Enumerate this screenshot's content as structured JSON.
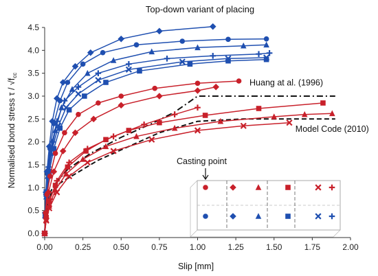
{
  "chart_data": {
    "type": "line",
    "title": "Top-down variant of placing",
    "xlabel": "Slip [mm]",
    "ylabel_main": "Normalised bond stress τ / √f",
    "ylabel_sub": "cc",
    "xlim": [
      0,
      2.0
    ],
    "ylim": [
      0,
      4.5
    ],
    "xticks": [
      "0.00",
      "0.25",
      "0.50",
      "0.75",
      "1.00",
      "1.25",
      "1.50",
      "1.75",
      "2.00"
    ],
    "yticks": [
      "0.0",
      "0.5",
      "1.0",
      "1.5",
      "2.0",
      "2.5",
      "3.0",
      "3.5",
      "4.0",
      "4.5"
    ],
    "grid": false,
    "colors": {
      "blue": "#1f4fb0",
      "red": "#c8202a",
      "black": "#111111"
    },
    "series": [
      {
        "color": "blue",
        "marker": "diamond",
        "points": [
          [
            0,
            0
          ],
          [
            0.003,
            0.45
          ],
          [
            0.008,
            0.9
          ],
          [
            0.015,
            1.35
          ],
          [
            0.03,
            1.9
          ],
          [
            0.05,
            2.45
          ],
          [
            0.08,
            2.95
          ],
          [
            0.12,
            3.3
          ],
          [
            0.2,
            3.65
          ],
          [
            0.3,
            3.95
          ],
          [
            0.5,
            4.25
          ],
          [
            0.75,
            4.42
          ],
          [
            1.1,
            4.52
          ]
        ]
      },
      {
        "color": "blue",
        "marker": "circle",
        "points": [
          [
            0,
            0
          ],
          [
            0.003,
            0.4
          ],
          [
            0.008,
            0.85
          ],
          [
            0.018,
            1.3
          ],
          [
            0.035,
            1.85
          ],
          [
            0.06,
            2.4
          ],
          [
            0.1,
            2.9
          ],
          [
            0.15,
            3.3
          ],
          [
            0.25,
            3.7
          ],
          [
            0.38,
            3.95
          ],
          [
            0.6,
            4.12
          ],
          [
            0.9,
            4.2
          ],
          [
            1.2,
            4.24
          ],
          [
            1.45,
            4.25
          ]
        ]
      },
      {
        "color": "blue",
        "marker": "triangle",
        "points": [
          [
            0,
            0
          ],
          [
            0.003,
            0.38
          ],
          [
            0.01,
            0.8
          ],
          [
            0.02,
            1.25
          ],
          [
            0.04,
            1.75
          ],
          [
            0.07,
            2.25
          ],
          [
            0.11,
            2.75
          ],
          [
            0.18,
            3.15
          ],
          [
            0.28,
            3.5
          ],
          [
            0.45,
            3.78
          ],
          [
            0.7,
            3.97
          ],
          [
            1.0,
            4.06
          ],
          [
            1.3,
            4.1
          ],
          [
            1.45,
            4.12
          ]
        ]
      },
      {
        "color": "blue",
        "marker": "plus",
        "points": [
          [
            0,
            0
          ],
          [
            0.005,
            0.45
          ],
          [
            0.012,
            0.95
          ],
          [
            0.025,
            1.45
          ],
          [
            0.05,
            2.0
          ],
          [
            0.08,
            2.45
          ],
          [
            0.13,
            2.9
          ],
          [
            0.22,
            3.2
          ],
          [
            0.35,
            3.5
          ],
          [
            0.55,
            3.7
          ],
          [
            0.8,
            3.82
          ],
          [
            1.1,
            3.88
          ],
          [
            1.4,
            3.92
          ],
          [
            1.47,
            3.94
          ]
        ]
      },
      {
        "color": "blue",
        "marker": "x",
        "points": [
          [
            0,
            0
          ],
          [
            0.004,
            0.4
          ],
          [
            0.012,
            0.85
          ],
          [
            0.025,
            1.35
          ],
          [
            0.05,
            1.85
          ],
          [
            0.09,
            2.35
          ],
          [
            0.14,
            2.75
          ],
          [
            0.22,
            3.05
          ],
          [
            0.35,
            3.35
          ],
          [
            0.55,
            3.58
          ],
          [
            0.9,
            3.75
          ],
          [
            1.2,
            3.82
          ],
          [
            1.45,
            3.84
          ]
        ]
      },
      {
        "color": "blue",
        "marker": "square",
        "points": [
          [
            0,
            0
          ],
          [
            0.005,
            0.4
          ],
          [
            0.015,
            0.85
          ],
          [
            0.03,
            1.35
          ],
          [
            0.06,
            1.85
          ],
          [
            0.1,
            2.3
          ],
          [
            0.16,
            2.7
          ],
          [
            0.26,
            3.0
          ],
          [
            0.4,
            3.3
          ],
          [
            0.62,
            3.55
          ],
          [
            0.95,
            3.7
          ],
          [
            1.2,
            3.77
          ],
          [
            1.45,
            3.8
          ]
        ]
      },
      {
        "color": "red",
        "marker": "circle",
        "points": [
          [
            0,
            0
          ],
          [
            0.005,
            0.45
          ],
          [
            0.015,
            0.85
          ],
          [
            0.035,
            1.25
          ],
          [
            0.07,
            1.75
          ],
          [
            0.13,
            2.2
          ],
          [
            0.22,
            2.6
          ],
          [
            0.35,
            2.85
          ],
          [
            0.5,
            3.0
          ],
          [
            0.72,
            3.17
          ],
          [
            1.0,
            3.28
          ],
          [
            1.27,
            3.33
          ]
        ]
      },
      {
        "color": "red",
        "marker": "diamond",
        "points": [
          [
            0,
            0
          ],
          [
            0.008,
            0.45
          ],
          [
            0.025,
            0.9
          ],
          [
            0.06,
            1.35
          ],
          [
            0.12,
            1.8
          ],
          [
            0.2,
            2.2
          ],
          [
            0.32,
            2.5
          ],
          [
            0.5,
            2.8
          ],
          [
            0.75,
            3.0
          ],
          [
            1.0,
            3.12
          ],
          [
            1.12,
            3.2
          ]
        ]
      },
      {
        "color": "red",
        "marker": "square",
        "points": [
          [
            0,
            0
          ],
          [
            0.01,
            0.35
          ],
          [
            0.03,
            0.7
          ],
          [
            0.07,
            1.05
          ],
          [
            0.15,
            1.45
          ],
          [
            0.27,
            1.8
          ],
          [
            0.4,
            2.05
          ],
          [
            0.55,
            2.25
          ],
          [
            0.75,
            2.42
          ],
          [
            1.05,
            2.58
          ],
          [
            1.4,
            2.73
          ],
          [
            1.82,
            2.85
          ]
        ]
      },
      {
        "color": "red",
        "marker": "triangle",
        "points": [
          [
            0,
            0
          ],
          [
            0.01,
            0.3
          ],
          [
            0.03,
            0.6
          ],
          [
            0.07,
            0.95
          ],
          [
            0.14,
            1.3
          ],
          [
            0.25,
            1.62
          ],
          [
            0.4,
            1.9
          ],
          [
            0.6,
            2.12
          ],
          [
            0.85,
            2.3
          ],
          [
            1.15,
            2.45
          ],
          [
            1.5,
            2.55
          ],
          [
            1.7,
            2.6
          ],
          [
            1.88,
            2.62
          ]
        ]
      },
      {
        "color": "red",
        "marker": "x",
        "points": [
          [
            0,
            0
          ],
          [
            0.01,
            0.28
          ],
          [
            0.03,
            0.55
          ],
          [
            0.08,
            0.9
          ],
          [
            0.16,
            1.25
          ],
          [
            0.28,
            1.55
          ],
          [
            0.45,
            1.8
          ],
          [
            0.7,
            2.05
          ],
          [
            1.0,
            2.25
          ],
          [
            1.3,
            2.35
          ],
          [
            1.6,
            2.42
          ]
        ]
      },
      {
        "color": "red",
        "marker": "plus",
        "points": [
          [
            0,
            0
          ],
          [
            0.01,
            0.33
          ],
          [
            0.035,
            0.75
          ],
          [
            0.08,
            1.15
          ],
          [
            0.16,
            1.55
          ],
          [
            0.28,
            1.85
          ],
          [
            0.45,
            2.12
          ],
          [
            0.65,
            2.38
          ],
          [
            0.85,
            2.6
          ],
          [
            1.0,
            2.75
          ]
        ]
      }
    ],
    "reference_curves": [
      {
        "name": "Huang at al. (1996)",
        "style": "dash-dot",
        "points": [
          [
            0,
            0
          ],
          [
            0.01,
            0.5
          ],
          [
            0.03,
            0.85
          ],
          [
            0.06,
            1.05
          ],
          [
            0.15,
            1.4
          ],
          [
            0.3,
            1.75
          ],
          [
            0.5,
            2.1
          ],
          [
            0.7,
            2.4
          ],
          [
            0.85,
            2.65
          ],
          [
            1.0,
            3.0
          ],
          [
            1.55,
            3.0
          ],
          [
            1.9,
            3.0
          ]
        ]
      },
      {
        "name": "Model Code (2010)",
        "style": "dashed",
        "points": [
          [
            0,
            0
          ],
          [
            0.01,
            0.5
          ],
          [
            0.04,
            0.85
          ],
          [
            0.1,
            1.1
          ],
          [
            0.2,
            1.3
          ],
          [
            0.35,
            1.6
          ],
          [
            0.55,
            1.9
          ],
          [
            0.75,
            2.2
          ],
          [
            1.0,
            2.45
          ],
          [
            1.3,
            2.5
          ],
          [
            1.9,
            2.5
          ]
        ]
      }
    ],
    "inset": {
      "label": "Casting point",
      "rows": [
        {
          "color": "red",
          "markers": [
            "circle",
            "diamond",
            "triangle",
            "square",
            "x",
            "plus"
          ]
        },
        {
          "color": "blue",
          "markers": [
            "circle",
            "diamond",
            "triangle",
            "square",
            "x",
            "plus"
          ]
        }
      ]
    }
  }
}
